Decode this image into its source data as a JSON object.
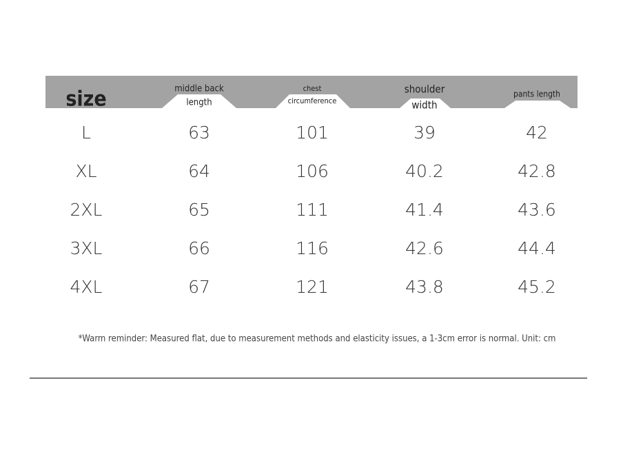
{
  "table": {
    "header": [
      [
        "size"
      ],
      [
        "middle back",
        "length"
      ],
      [
        "chest",
        "circumference"
      ],
      [
        "shoulder",
        "width"
      ],
      [
        "pants length"
      ]
    ],
    "rows": [
      [
        "L",
        63,
        101,
        39,
        42
      ],
      [
        "XL",
        64,
        106,
        40.2,
        42.8
      ],
      [
        "2XL",
        65,
        111,
        41.4,
        43.6
      ],
      [
        "3XL",
        66,
        116,
        42.6,
        44.4
      ],
      [
        "4XL",
        67,
        121,
        43.8,
        45.2
      ]
    ]
  },
  "note": "*Warm reminder: Measured flat, due to measurement methods and elasticity issues, a 1-3cm error is normal. Unit: cm"
}
